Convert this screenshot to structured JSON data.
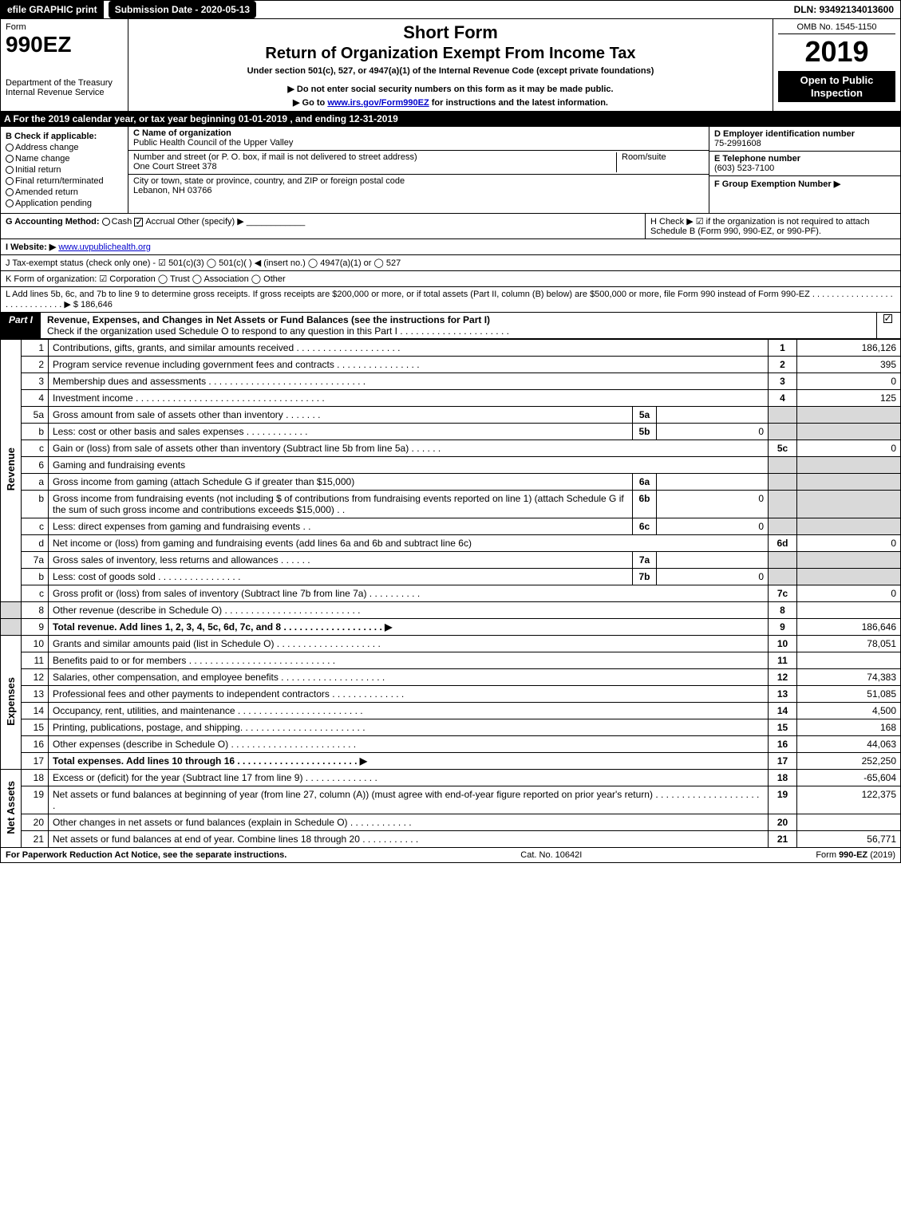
{
  "top": {
    "efile": "efile GRAPHIC print",
    "submission": "Submission Date - 2020-05-13",
    "dln": "DLN: 93492134013600"
  },
  "header": {
    "form_label": "Form",
    "form_num": "990EZ",
    "dept": "Department of the Treasury Internal Revenue Service",
    "title1": "Short Form",
    "title2": "Return of Organization Exempt From Income Tax",
    "subtitle": "Under section 501(c), 527, or 4947(a)(1) of the Internal Revenue Code (except private foundations)",
    "note1": "▶ Do not enter social security numbers on this form as it may be made public.",
    "note2_pre": "▶ Go to ",
    "note2_link": "www.irs.gov/Form990EZ",
    "note2_post": " for instructions and the latest information.",
    "omb": "OMB No. 1545-1150",
    "year": "2019",
    "inspect": "Open to Public Inspection"
  },
  "tax_year": "A For the 2019 calendar year, or tax year beginning 01-01-2019 , and ending 12-31-2019",
  "B": {
    "label": "B Check if applicable:",
    "items": [
      "Address change",
      "Name change",
      "Initial return",
      "Final return/terminated",
      "Amended return",
      "Application pending"
    ]
  },
  "C": {
    "name_label": "C Name of organization",
    "name": "Public Health Council of the Upper Valley",
    "addr_label": "Number and street (or P. O. box, if mail is not delivered to street address)",
    "addr": "One Court Street 378",
    "room_label": "Room/suite",
    "city_label": "City or town, state or province, country, and ZIP or foreign postal code",
    "city": "Lebanon, NH  03766"
  },
  "DEF": {
    "d_label": "D Employer identification number",
    "d_val": "75-2991608",
    "e_label": "E Telephone number",
    "e_val": "(603) 523-7100",
    "f_label": "F Group Exemption Number ▶"
  },
  "G": {
    "label": "G Accounting Method:",
    "cash": "Cash",
    "accrual": "Accrual",
    "other": "Other (specify) ▶"
  },
  "H": {
    "text": "H Check ▶ ☑ if the organization is not required to attach Schedule B (Form 990, 990-EZ, or 990-PF)."
  },
  "I": {
    "label": "I Website: ▶",
    "url": "www.uvpublichealth.org"
  },
  "J": {
    "text": "J Tax-exempt status (check only one) - ☑ 501(c)(3)  ◯ 501(c)(  ) ◀ (insert no.)  ◯ 4947(a)(1) or  ◯ 527"
  },
  "K": {
    "text": "K Form of organization:  ☑ Corporation  ◯ Trust  ◯ Association  ◯ Other"
  },
  "L": {
    "text": "L Add lines 5b, 6c, and 7b to line 9 to determine gross receipts. If gross receipts are $200,000 or more, or if total assets (Part II, column (B) below) are $500,000 or more, file Form 990 instead of Form 990-EZ . . . . . . . . . . . . . . . . . . . . . . . . . . . . . ▶",
    "amount": "$ 186,646"
  },
  "part1": {
    "tag": "Part I",
    "title": "Revenue, Expenses, and Changes in Net Assets or Fund Balances (see the instructions for Part I)",
    "note": "Check if the organization used Schedule O to respond to any question in this Part I . . . . . . . . . . . . . . . . . . . . ."
  },
  "side_labels": {
    "revenue": "Revenue",
    "expenses": "Expenses",
    "netassets": "Net Assets"
  },
  "lines": {
    "l1": {
      "n": "1",
      "d": "Contributions, gifts, grants, and similar amounts received . . . . . . . . . . . . . . . . . . . .",
      "c": "1",
      "a": "186,126"
    },
    "l2": {
      "n": "2",
      "d": "Program service revenue including government fees and contracts . . . . . . . . . . . . . . . .",
      "c": "2",
      "a": "395"
    },
    "l3": {
      "n": "3",
      "d": "Membership dues and assessments . . . . . . . . . . . . . . . . . . . . . . . . . . . . . .",
      "c": "3",
      "a": "0"
    },
    "l4": {
      "n": "4",
      "d": "Investment income . . . . . . . . . . . . . . . . . . . . . . . . . . . . . . . . . . . .",
      "c": "4",
      "a": "125"
    },
    "l5a": {
      "n": "5a",
      "d": "Gross amount from sale of assets other than inventory . . . . . . .",
      "sc": "5a",
      "sv": ""
    },
    "l5b": {
      "n": "b",
      "d": "Less: cost or other basis and sales expenses . . . . . . . . . . . .",
      "sc": "5b",
      "sv": "0"
    },
    "l5c": {
      "n": "c",
      "d": "Gain or (loss) from sale of assets other than inventory (Subtract line 5b from line 5a) . . . . . .",
      "c": "5c",
      "a": "0"
    },
    "l6": {
      "n": "6",
      "d": "Gaming and fundraising events"
    },
    "l6a": {
      "n": "a",
      "d": "Gross income from gaming (attach Schedule G if greater than $15,000)",
      "sc": "6a",
      "sv": ""
    },
    "l6b": {
      "n": "b",
      "d": "Gross income from fundraising events (not including $                  of contributions from fundraising events reported on line 1) (attach Schedule G if the sum of such gross income and contributions exceeds $15,000)   .  .",
      "sc": "6b",
      "sv": "0"
    },
    "l6c": {
      "n": "c",
      "d": "Less: direct expenses from gaming and fundraising events       .  .",
      "sc": "6c",
      "sv": "0"
    },
    "l6d": {
      "n": "d",
      "d": "Net income or (loss) from gaming and fundraising events (add lines 6a and 6b and subtract line 6c)",
      "c": "6d",
      "a": "0"
    },
    "l7a": {
      "n": "7a",
      "d": "Gross sales of inventory, less returns and allowances . . . . . .",
      "sc": "7a",
      "sv": ""
    },
    "l7b": {
      "n": "b",
      "d": "Less: cost of goods sold       . . . . . . . . . . . . . . . .",
      "sc": "7b",
      "sv": "0"
    },
    "l7c": {
      "n": "c",
      "d": "Gross profit or (loss) from sales of inventory (Subtract line 7b from line 7a) . . . . . . . . . .",
      "c": "7c",
      "a": "0"
    },
    "l8": {
      "n": "8",
      "d": "Other revenue (describe in Schedule O) . . . . . . . . . . . . . . . . . . . . . . . . . .",
      "c": "8",
      "a": ""
    },
    "l9": {
      "n": "9",
      "d": "Total revenue. Add lines 1, 2, 3, 4, 5c, 6d, 7c, and 8 . . . . . . . . . . . . . . . . . . . ▶",
      "c": "9",
      "a": "186,646",
      "bold": true
    },
    "l10": {
      "n": "10",
      "d": "Grants and similar amounts paid (list in Schedule O) . . . . . . . . . . . . . . . . . . . .",
      "c": "10",
      "a": "78,051"
    },
    "l11": {
      "n": "11",
      "d": "Benefits paid to or for members   . . . . . . . . . . . . . . . . . . . . . . . . . . . .",
      "c": "11",
      "a": ""
    },
    "l12": {
      "n": "12",
      "d": "Salaries, other compensation, and employee benefits . . . . . . . . . . . . . . . . . . . .",
      "c": "12",
      "a": "74,383"
    },
    "l13": {
      "n": "13",
      "d": "Professional fees and other payments to independent contractors . . . . . . . . . . . . . .",
      "c": "13",
      "a": "51,085"
    },
    "l14": {
      "n": "14",
      "d": "Occupancy, rent, utilities, and maintenance . . . . . . . . . . . . . . . . . . . . . . . .",
      "c": "14",
      "a": "4,500"
    },
    "l15": {
      "n": "15",
      "d": "Printing, publications, postage, and shipping. . . . . . . . . . . . . . . . . . . . . . . .",
      "c": "15",
      "a": "168"
    },
    "l16": {
      "n": "16",
      "d": "Other expenses (describe in Schedule O)   . . . . . . . . . . . . . . . . . . . . . . . .",
      "c": "16",
      "a": "44,063"
    },
    "l17": {
      "n": "17",
      "d": "Total expenses. Add lines 10 through 16   . . . . . . . . . . . . . . . . . . . . . . . ▶",
      "c": "17",
      "a": "252,250",
      "bold": true
    },
    "l18": {
      "n": "18",
      "d": "Excess or (deficit) for the year (Subtract line 17 from line 9)       . . . . . . . . . . . . . .",
      "c": "18",
      "a": "-65,604"
    },
    "l19": {
      "n": "19",
      "d": "Net assets or fund balances at beginning of year (from line 27, column (A)) (must agree with end-of-year figure reported on prior year's return) . . . . . . . . . . . . . . . . . . . . .",
      "c": "19",
      "a": "122,375"
    },
    "l20": {
      "n": "20",
      "d": "Other changes in net assets or fund balances (explain in Schedule O) . . . . . . . . . . . .",
      "c": "20",
      "a": ""
    },
    "l21": {
      "n": "21",
      "d": "Net assets or fund balances at end of year. Combine lines 18 through 20 . . . . . . . . . . .",
      "c": "21",
      "a": "56,771"
    }
  },
  "footer": {
    "left": "For Paperwork Reduction Act Notice, see the separate instructions.",
    "mid": "Cat. No. 10642I",
    "right": "Form 990-EZ (2019)"
  },
  "colors": {
    "black": "#000000",
    "white": "#ffffff",
    "shade": "#d9d9d9",
    "link": "#0000cc"
  }
}
